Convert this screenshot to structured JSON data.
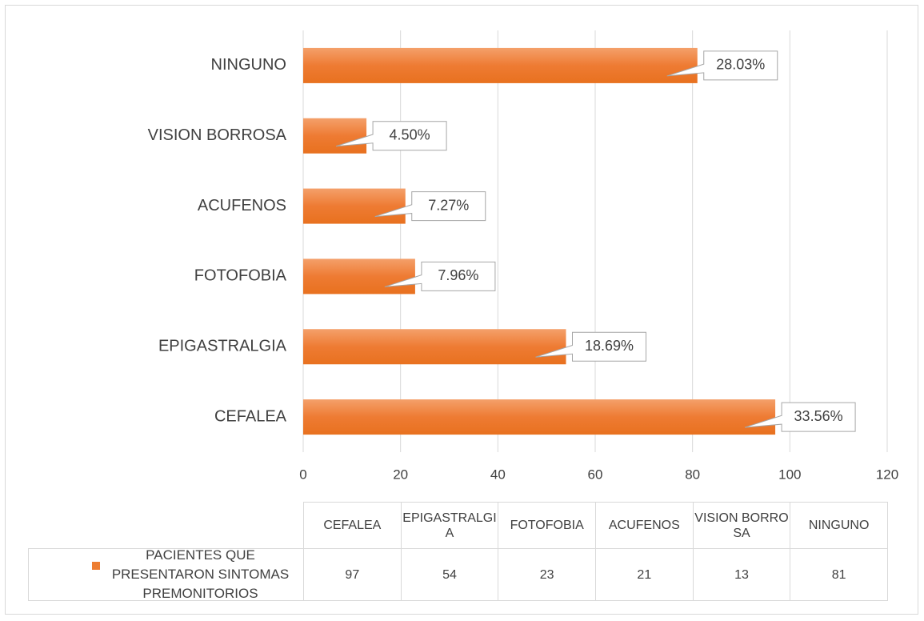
{
  "chart_data": {
    "type": "bar",
    "orientation": "horizontal",
    "categories": [
      "CEFALEA",
      "EPIGASTRALGIA",
      "FOTOFOBIA",
      "ACUFENOS",
      "VISION BORROSA",
      "NINGUNO"
    ],
    "series": [
      {
        "name": "PACIENTES QUE PRESENTARON SINTOMAS PREMONITORIOS",
        "color": "#ED7D31",
        "values": [
          97,
          54,
          23,
          21,
          13,
          81
        ]
      }
    ],
    "data_labels": [
      "33.56%",
      "18.69%",
      "7.96%",
      "7.27%",
      "4.50%",
      "28.03%"
    ],
    "xlim": [
      0,
      120
    ],
    "xticks": [
      0,
      20,
      40,
      60,
      80,
      100,
      120
    ],
    "grid": true,
    "data_table": true
  }
}
